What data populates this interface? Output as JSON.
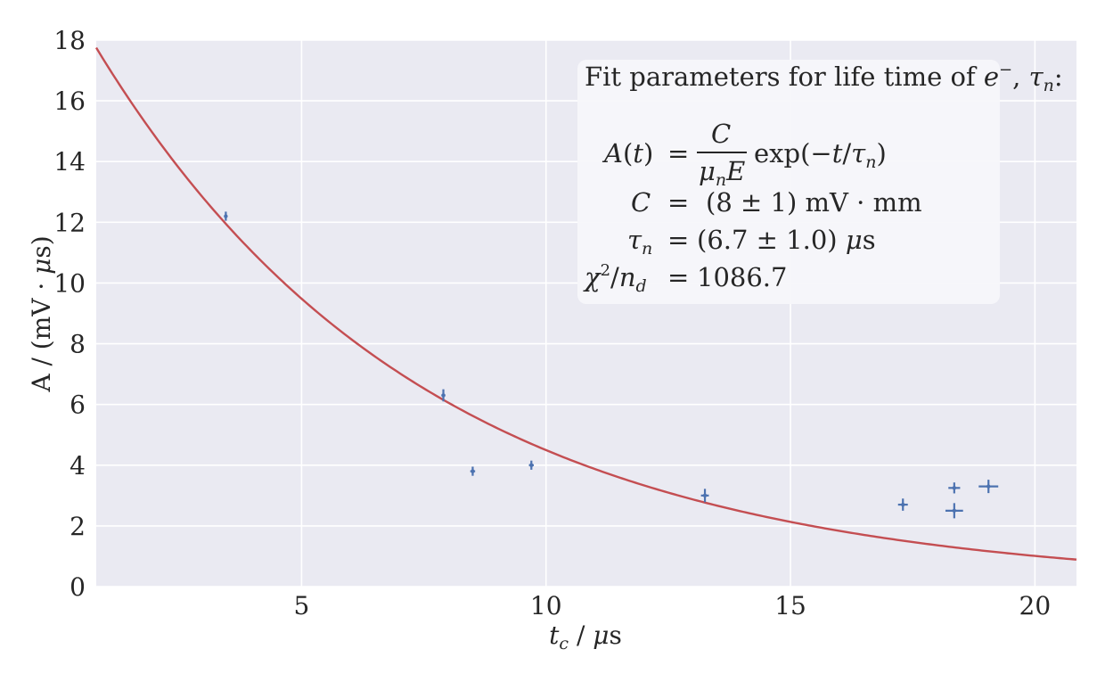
{
  "chart_data": {
    "type": "scatter",
    "title": "",
    "xlabel": "t_c / μs",
    "ylabel": "A / (mV · μs)",
    "xlim": [
      0.8,
      20.85
    ],
    "ylim": [
      0,
      18
    ],
    "xticks": [
      5,
      10,
      15,
      20
    ],
    "yticks": [
      0,
      2,
      4,
      6,
      8,
      10,
      12,
      14,
      16,
      18
    ],
    "grid": true,
    "legend": "none",
    "colors": {
      "background": "#eaeaf2",
      "grid": "#ffffff",
      "points": "#4c72b0",
      "fit": "#c44e52"
    },
    "series": [
      {
        "kind": "errorbar",
        "x": [
          3.45,
          7.9,
          8.5,
          9.7,
          13.25,
          17.3,
          18.35,
          18.35,
          19.05
        ],
        "y": [
          12.2,
          6.3,
          3.8,
          4.0,
          3.0,
          2.7,
          3.25,
          2.5,
          3.3
        ],
        "xerr": [
          0.03,
          0.04,
          0.05,
          0.05,
          0.08,
          0.1,
          0.12,
          0.18,
          0.2
        ],
        "yerr": [
          0.15,
          0.2,
          0.15,
          0.15,
          0.22,
          0.2,
          0.18,
          0.25,
          0.22
        ]
      },
      {
        "kind": "fit",
        "function": "C/(mu_n E) * exp(-t/tau_n)",
        "amplitude": 20.0,
        "tau": 6.7
      }
    ],
    "annotation": {
      "title": "Fit parameters for life time of e⁻, τₙ:",
      "rows": [
        {
          "lhs": "A(t)",
          "rhs": "= C/(μₙE) exp(−t/τₙ)"
        },
        {
          "lhs": "C",
          "rhs": "=  (8 ± 1) mV · mm"
        },
        {
          "lhs": "τₙ",
          "rhs": "= (6.7 ± 1.0) μs"
        },
        {
          "lhs": "χ²/n_d",
          "rhs": "= 1086.7"
        }
      ]
    }
  }
}
